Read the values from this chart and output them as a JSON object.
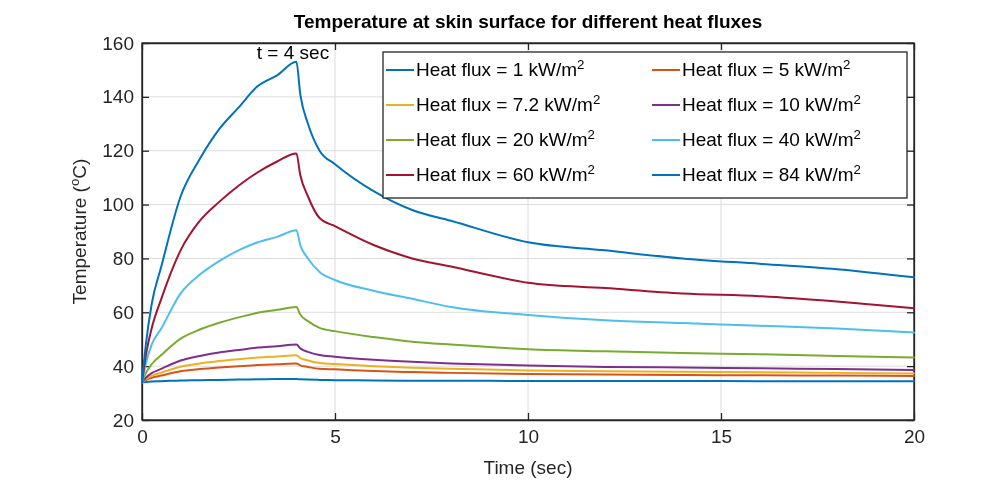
{
  "chart_data": {
    "type": "line",
    "title": "Temperature at skin surface for different heat fluxes",
    "xlabel": "Time (sec)",
    "ylabel": "Temperature ($^{o}$C)",
    "x": [
      0,
      0.1,
      0.25,
      0.5,
      1,
      1.5,
      2,
      2.5,
      3,
      3.5,
      4,
      4.1,
      4.3,
      4.6,
      5,
      6,
      7,
      8,
      10,
      12,
      14,
      16,
      18,
      20
    ],
    "series": [
      {
        "name": "Heat flux = 1 kW/m$^{2}$",
        "color": "#0072bd",
        "values": [
          34,
          34.1,
          34.3,
          34.4,
          34.7,
          34.8,
          34.9,
          35,
          35.1,
          35.2,
          35.2,
          35.1,
          35,
          34.9,
          34.8,
          34.7,
          34.6,
          34.6,
          34.5,
          34.5,
          34.5,
          34.4,
          34.4,
          34.4
        ]
      },
      {
        "name": "Heat flux = 5 kW/m$^{2}$",
        "color": "#d95319",
        "values": [
          34,
          34.8,
          35.7,
          36.5,
          38.1,
          38.9,
          39.5,
          40,
          40.4,
          40.7,
          41,
          40.3,
          39.7,
          39,
          38.8,
          38.2,
          37.8,
          37.5,
          37.1,
          36.9,
          36.7,
          36.6,
          36.5,
          36.3
        ]
      },
      {
        "name": "Heat flux = 7.2 kW/m$^{2}$",
        "color": "#edb120",
        "values": [
          34,
          35.2,
          36.4,
          37.6,
          39.8,
          41,
          41.9,
          42.6,
          43.2,
          43.6,
          44,
          43,
          42.1,
          41.2,
          40.8,
          40,
          39.4,
          39,
          38.4,
          38.1,
          37.9,
          37.7,
          37.5,
          37.3
        ]
      },
      {
        "name": "Heat flux = 10 kW/m$^{2}$",
        "color": "#7e2f8e",
        "values": [
          34,
          35.7,
          37.4,
          39,
          42.1,
          43.8,
          45.1,
          46,
          46.9,
          47.4,
          48,
          46.6,
          45.3,
          44.1,
          43.5,
          42.4,
          41.6,
          41,
          40.2,
          39.7,
          39.5,
          39.2,
          38.9,
          38.6
        ]
      },
      {
        "name": "Heat flux = 20 kW/m$^{2}$",
        "color": "#77ac30",
        "values": [
          34,
          37.4,
          40.7,
          44.1,
          50.2,
          53.6,
          56.1,
          58.1,
          59.8,
          60.9,
          62,
          59.2,
          56.7,
          54.2,
          53,
          50.8,
          49.1,
          48,
          46.3,
          45.5,
          44.9,
          44.4,
          43.8,
          43.2
        ]
      },
      {
        "name": "Heat flux = 40 kW/m$^{2}$",
        "color": "#4dbeee",
        "values": [
          34,
          41,
          48,
          54,
          67,
          74,
          79,
          83,
          86,
          88,
          90.5,
          85,
          80,
          75,
          72,
          68,
          65,
          62,
          59,
          57,
          56,
          55,
          54,
          52.5
        ]
      },
      {
        "name": "Heat flux = 60 kW/m$^{2}$",
        "color": "#a2142f",
        "values": [
          34,
          44,
          54,
          65,
          83,
          94,
          101,
          107,
          112,
          116,
          119,
          111,
          103,
          95,
          92,
          85,
          80,
          77,
          71,
          69,
          67,
          66,
          64,
          61.5
        ]
      },
      {
        "name": "Heat flux = 84 kW/m$^{2}$",
        "color": "#0072bd",
        "values": [
          34,
          48,
          63,
          77,
          103,
          117,
          128,
          136,
          144,
          148,
          153,
          141,
          130,
          120,
          115,
          105,
          98,
          94,
          86,
          83,
          80,
          78,
          76,
          73
        ]
      }
    ],
    "xlim": [
      0,
      20
    ],
    "xticks": [
      0,
      5,
      10,
      15,
      20
    ],
    "ylim": [
      20,
      160
    ],
    "yticks": [
      20,
      40,
      60,
      80,
      100,
      120,
      140,
      160
    ],
    "grid": true,
    "legend": "top right",
    "line_style": "solid",
    "marker": "none",
    "annotations": [
      "t = 4 sec"
    ]
  }
}
